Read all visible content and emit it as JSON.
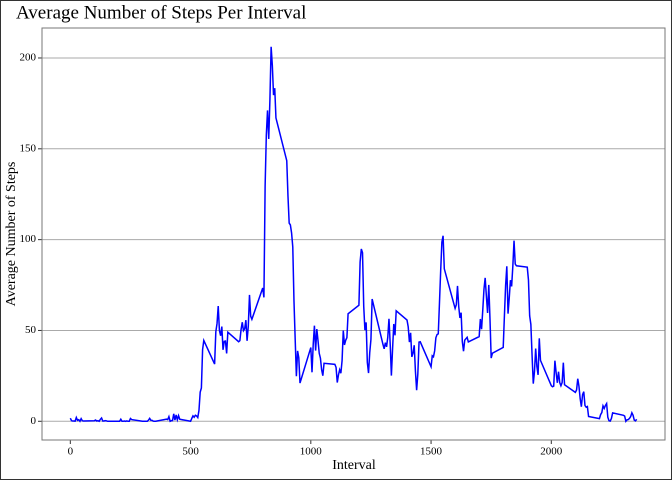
{
  "chart_data": {
    "type": "line",
    "title": "Average Number of Steps Per Interval",
    "xlabel": "Interval",
    "ylabel": "Average Number of Steps",
    "x": [
      0,
      5,
      10,
      15,
      20,
      25,
      30,
      35,
      40,
      45,
      50,
      55,
      100,
      105,
      110,
      115,
      120,
      125,
      130,
      135,
      140,
      145,
      150,
      155,
      200,
      205,
      210,
      215,
      220,
      225,
      230,
      235,
      240,
      245,
      250,
      255,
      300,
      305,
      310,
      315,
      320,
      325,
      330,
      335,
      340,
      345,
      350,
      355,
      400,
      405,
      410,
      415,
      420,
      425,
      430,
      435,
      440,
      445,
      450,
      455,
      500,
      505,
      510,
      515,
      520,
      525,
      530,
      535,
      540,
      545,
      550,
      555,
      600,
      605,
      610,
      615,
      620,
      625,
      630,
      635,
      640,
      645,
      650,
      655,
      700,
      705,
      710,
      715,
      720,
      725,
      730,
      735,
      740,
      745,
      750,
      755,
      800,
      805,
      810,
      815,
      820,
      825,
      830,
      835,
      840,
      845,
      850,
      855,
      900,
      905,
      910,
      915,
      920,
      925,
      930,
      935,
      940,
      945,
      950,
      955,
      1000,
      1005,
      1010,
      1015,
      1020,
      1025,
      1030,
      1035,
      1040,
      1045,
      1050,
      1055,
      1100,
      1105,
      1110,
      1115,
      1120,
      1125,
      1130,
      1135,
      1140,
      1145,
      1150,
      1155,
      1200,
      1205,
      1210,
      1215,
      1220,
      1225,
      1230,
      1235,
      1240,
      1245,
      1250,
      1255,
      1300,
      1305,
      1310,
      1315,
      1320,
      1325,
      1330,
      1335,
      1340,
      1345,
      1350,
      1355,
      1400,
      1405,
      1410,
      1415,
      1420,
      1425,
      1430,
      1435,
      1440,
      1445,
      1450,
      1455,
      1500,
      1505,
      1510,
      1515,
      1520,
      1525,
      1530,
      1535,
      1540,
      1545,
      1550,
      1555,
      1600,
      1605,
      1610,
      1615,
      1620,
      1625,
      1630,
      1635,
      1640,
      1645,
      1650,
      1655,
      1700,
      1705,
      1710,
      1715,
      1720,
      1725,
      1730,
      1735,
      1740,
      1745,
      1750,
      1755,
      1800,
      1805,
      1810,
      1815,
      1820,
      1825,
      1830,
      1835,
      1840,
      1845,
      1850,
      1855,
      1900,
      1905,
      1910,
      1915,
      1920,
      1925,
      1930,
      1935,
      1940,
      1945,
      1950,
      1955,
      2000,
      2005,
      2010,
      2015,
      2020,
      2025,
      2030,
      2035,
      2040,
      2045,
      2050,
      2055,
      2100,
      2105,
      2110,
      2115,
      2120,
      2125,
      2130,
      2135,
      2140,
      2145,
      2150,
      2155,
      2200,
      2205,
      2210,
      2215,
      2220,
      2225,
      2230,
      2235,
      2240,
      2245,
      2250,
      2255,
      2300,
      2305,
      2310,
      2315,
      2320,
      2325,
      2330,
      2335,
      2340,
      2345,
      2350,
      2355
    ],
    "series": [
      {
        "name": "Average Number of Steps",
        "color": "#0000ff",
        "values": [
          1.72,
          0.34,
          0.13,
          0.15,
          0.08,
          2.09,
          0.53,
          0.87,
          0,
          1.47,
          0.3,
          0.13,
          0.32,
          0.68,
          0.15,
          0.34,
          0,
          1.11,
          1.83,
          0.17,
          0.17,
          0.38,
          0.26,
          0,
          0,
          0,
          1.13,
          0,
          0,
          0.13,
          0,
          0.23,
          0,
          0,
          1.55,
          0.94,
          0,
          0,
          0,
          0,
          0,
          0.62,
          1.62,
          0.58,
          0.49,
          0.08,
          0,
          0,
          1.19,
          0.94,
          2.57,
          0,
          0.34,
          0.36,
          4.11,
          0.66,
          3.49,
          0.83,
          3.11,
          1.11,
          0,
          1.57,
          3,
          2.25,
          3.32,
          2.96,
          2.09,
          6.06,
          16.02,
          18.34,
          39.45,
          44.49,
          31.49,
          49.26,
          53.77,
          63.45,
          49.96,
          47.08,
          52.15,
          39.34,
          44.02,
          44.17,
          37.36,
          49.04,
          43.81,
          44.38,
          50.51,
          54.51,
          49.92,
          50.98,
          55.68,
          44.32,
          52.26,
          69.55,
          57.85,
          56.15,
          73.38,
          68.21,
          129.43,
          157.53,
          171.15,
          155.4,
          177.3,
          206.17,
          195.92,
          179.57,
          183.4,
          167.02,
          143.45,
          124.04,
          109.11,
          108.11,
          103.72,
          95.96,
          66.21,
          45.23,
          24.79,
          38.75,
          34.98,
          21.06,
          40.57,
          26.98,
          42.42,
          52.66,
          38.92,
          50.79,
          44.28,
          37.42,
          34.7,
          28.34,
          25.09,
          31.94,
          31.36,
          29.68,
          21.32,
          25.55,
          28.38,
          26.47,
          33.43,
          49.98,
          42.04,
          44.6,
          46.04,
          59.19,
          63.87,
          87.7,
          94.85,
          92.77,
          63.4,
          50.17,
          54.47,
          32.42,
          26.53,
          37.74,
          45.06,
          67.28,
          42.34,
          39.89,
          43.26,
          40.98,
          46.25,
          56.43,
          42.75,
          25.13,
          39.96,
          53.55,
          47.32,
          60.81,
          55.75,
          51.96,
          43.58,
          48.7,
          35.47,
          37.55,
          41.85,
          27.51,
          17.11,
          26.08,
          43.62,
          43.77,
          30.02,
          36.07,
          35.49,
          38.85,
          45.96,
          47.75,
          48.13,
          65.32,
          82.91,
          98.66,
          102.11,
          83.96,
          62.13,
          64.13,
          74.55,
          63.17,
          56.91,
          59.77,
          43.87,
          38.57,
          44.66,
          45.45,
          46.21,
          43.68,
          46.62,
          56.3,
          50.72,
          61.23,
          72.72,
          78.94,
          68.94,
          59.66,
          75.09,
          56.51,
          34.77,
          37.45,
          40.68,
          58.02,
          74.7,
          85.32,
          59.26,
          67.77,
          77.7,
          74.25,
          85.34,
          99.45,
          86.58,
          85.6,
          84.87,
          77.83,
          58.04,
          53.36,
          36.32,
          20.72,
          27.4,
          40.02,
          30.21,
          25.55,
          45.66,
          33.53,
          19.62,
          19.02,
          19.34,
          33.34,
          26.81,
          21.17,
          27.3,
          21.34,
          19.55,
          21.32,
          32.3,
          20.15,
          15.94,
          17.23,
          23.45,
          19.25,
          12.45,
          8.02,
          14.66,
          16.3,
          8.68,
          7.79,
          8.13,
          2.62,
          1.45,
          3.68,
          4.81,
          8.51,
          7.08,
          8.7,
          9.75,
          2.21,
          0.32,
          0.11,
          1.6,
          4.6,
          3.3,
          2.85,
          0,
          0.83,
          0.96,
          1.58,
          2.6,
          4.7,
          3.3,
          0.64,
          0.23,
          1.08
        ]
      }
    ],
    "xlim": [
      -117.75,
      2472.75
    ],
    "xticks": [
      0,
      500,
      1000,
      1500,
      2000
    ],
    "ylim": [
      -10.3,
      216.5
    ],
    "yticks": [
      0,
      50,
      100,
      150,
      200
    ],
    "grid": true
  }
}
